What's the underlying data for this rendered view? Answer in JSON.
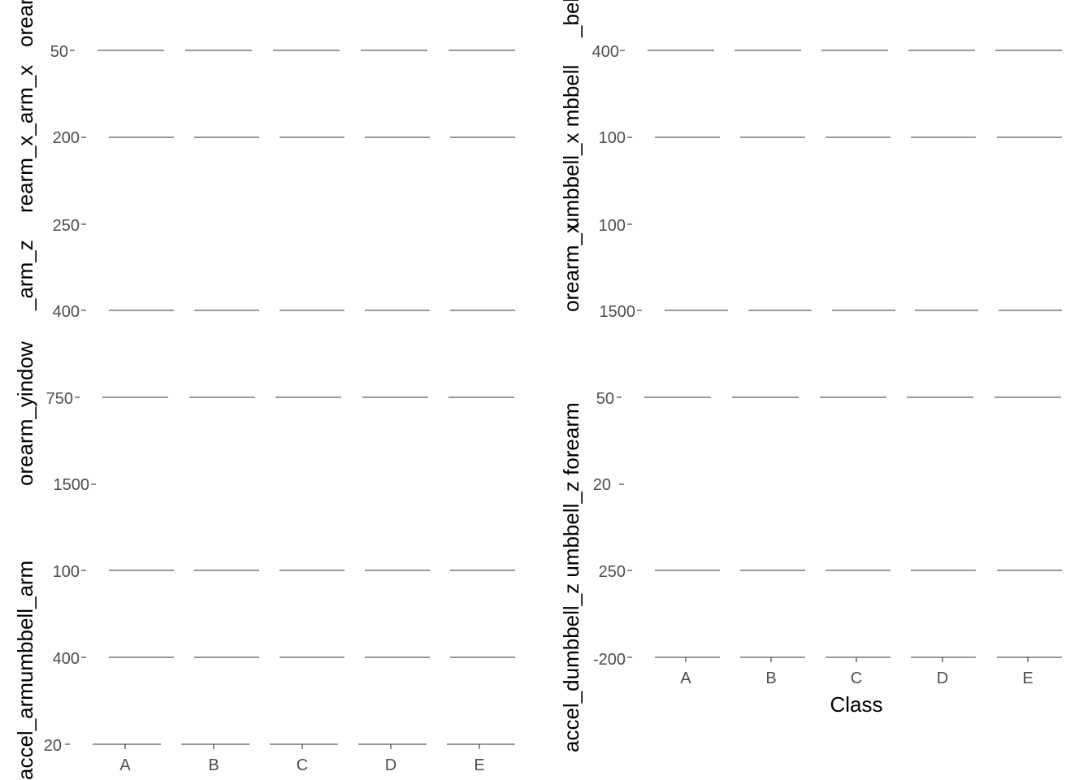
{
  "chart_data": {
    "type": "boxplot-grid",
    "categories": [
      "A",
      "B",
      "C",
      "D",
      "E"
    ],
    "xlabel": "Class",
    "colors": {
      "line": "#333333",
      "tick_text": "#4d4d4d",
      "label": "#000000",
      "background": "#ffffff"
    },
    "overlapping_ylabels": {
      "left": [
        "orear",
        "rearm_x_arm_x",
        "_arm_z",
        "orearm_yindow",
        "accel_armumbbell_arm"
      ],
      "right": [
        "_belt",
        "umbbell_x mbbell",
        "orearm_x",
        "accel_dumbbell_z umbbell_z forearm"
      ]
    },
    "overlapping_tick_labels": {
      "left": [
        "50",
        "200",
        "250",
        "400",
        "750",
        "1500",
        "100",
        "400",
        "20"
      ],
      "right": [
        "400",
        "100",
        "100",
        "1500",
        "50",
        "20",
        "250",
        "-200"
      ]
    },
    "bottom_category_labels": [
      "A",
      "B",
      "C",
      "D",
      "E"
    ]
  }
}
